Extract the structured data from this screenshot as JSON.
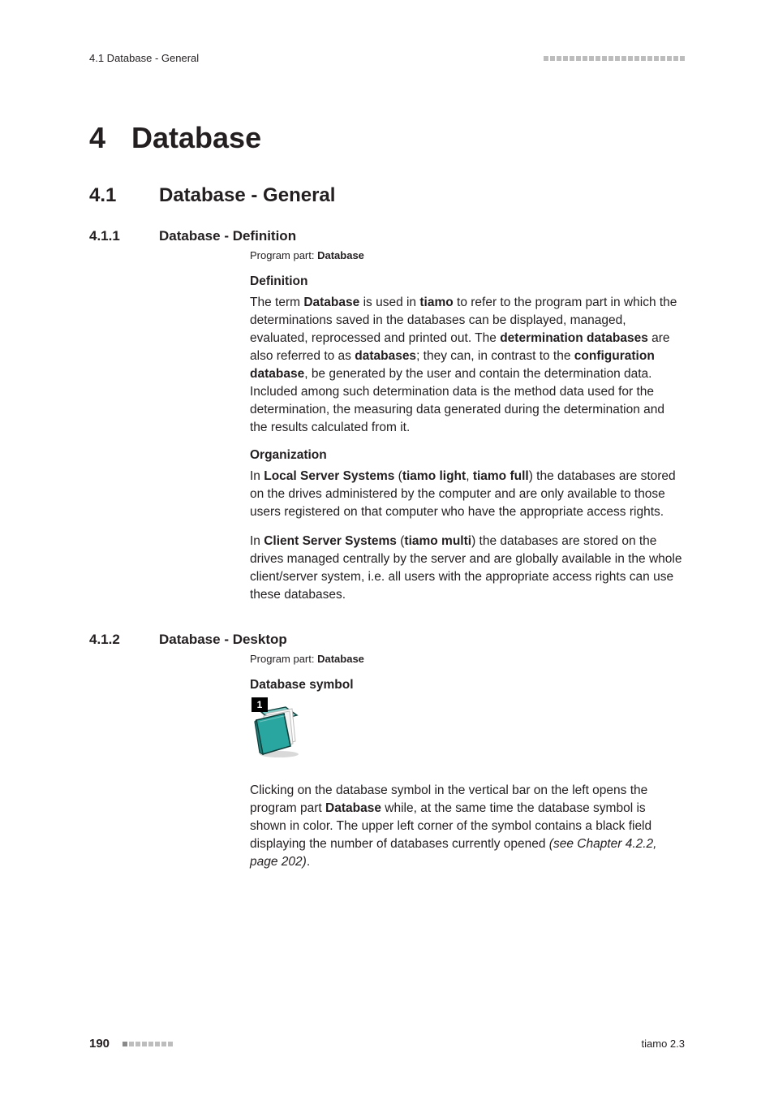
{
  "header": {
    "running_head": "4.1 Database - General"
  },
  "chapter": {
    "number": "4",
    "title": "Database"
  },
  "section": {
    "number": "4.1",
    "title": "Database - General"
  },
  "sub1": {
    "number": "4.1.1",
    "title": "Database - Definition",
    "program_part_label": "Program part: ",
    "program_part_value": "Database",
    "h_definition": "Definition",
    "p_def_1a": "The term ",
    "p_def_1b": "Database",
    "p_def_1c": " is used in ",
    "p_def_1d": "tiamo",
    "p_def_1e": " to refer to the program part in which the determinations saved in the databases can be displayed, managed, evaluated, reprocessed and printed out. The ",
    "p_def_1f": "determination databases",
    "p_def_1g": " are also referred to as ",
    "p_def_1h": "databases",
    "p_def_1i": "; they can, in contrast to the ",
    "p_def_1j": "configuration database",
    "p_def_1k": ", be generated by the user and contain the determination data. Included among such determination data is the method data used for the determination, the measuring data generated during the determination and the results calculated from it.",
    "h_organization": "Organization",
    "p_org_1a": "In ",
    "p_org_1b": "Local Server Systems",
    "p_org_1c": " (",
    "p_org_1d": "tiamo light",
    "p_org_1e": ", ",
    "p_org_1f": "tiamo full",
    "p_org_1g": ") the databases are stored on the drives administered by the computer and are only available to those users registered on that computer who have the appropriate access rights.",
    "p_org_2a": "In ",
    "p_org_2b": "Client Server Systems",
    "p_org_2c": " (",
    "p_org_2d": "tiamo multi",
    "p_org_2e": ") the databases are stored on the drives managed centrally by the server and are globally available in the whole client/server system, i.e. all users with the appropriate access rights can use these databases."
  },
  "sub2": {
    "number": "4.1.2",
    "title": "Database - Desktop",
    "program_part_label": "Program part: ",
    "program_part_value": "Database",
    "h_symbol": "Database symbol",
    "badge": "1",
    "p_sym_1a": "Clicking on the database symbol in the vertical bar on the left opens the program part ",
    "p_sym_1b": "Database",
    "p_sym_1c": " while, at the same time the database symbol is shown in color. The upper left corner of the symbol contains a black field displaying the number of databases currently opened ",
    "p_sym_1d": "(see Chapter 4.2.2, page 202)",
    "p_sym_1e": "."
  },
  "footer": {
    "page_number": "190",
    "product": "tiamo 2.3"
  },
  "style": {
    "decor_squares_header": 22,
    "decor_squares_footer": 8,
    "icon": {
      "folder_front": "#2aa6a0",
      "folder_front_dark": "#1f7e79",
      "folder_back": "#7fcbc6",
      "paper": "#f3f3f3",
      "paper_shadow": "#cfcfcf",
      "outline": "#0e3d3a"
    }
  }
}
